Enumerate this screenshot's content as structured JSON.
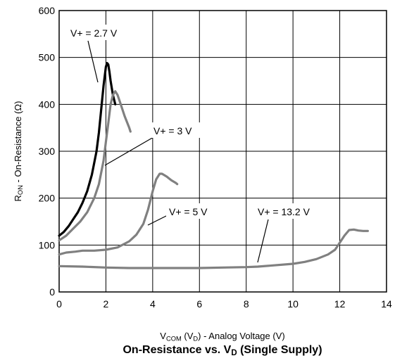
{
  "chart_data": {
    "type": "line",
    "title_main": "On-Resistance vs. V",
    "title_sub": "D",
    "title_tail": " (Single Supply)",
    "ylabel_a": "R",
    "ylabel_sub": "ON",
    "ylabel_b": " - On-Resistance (Ω)",
    "xlabel_a": "V",
    "xlabel_sub1": "COM",
    "xlabel_b": " (V",
    "xlabel_sub2": "D",
    "xlabel_c": ") - Analog Voltage (V)",
    "xlim": [
      0,
      14
    ],
    "ylim": [
      0,
      600
    ],
    "xticks": [
      "0",
      "2",
      "4",
      "6",
      "8",
      "10",
      "12",
      "14"
    ],
    "yticks": [
      "0",
      "100",
      "200",
      "300",
      "400",
      "500",
      "600"
    ],
    "grid": true,
    "series": [
      {
        "name": "V+ = 2.7 V",
        "color": "#000000",
        "x": [
          0,
          0.2,
          0.4,
          0.6,
          0.8,
          1.0,
          1.2,
          1.4,
          1.6,
          1.7,
          1.8,
          1.9,
          2.0,
          2.05,
          2.1,
          2.15,
          2.2,
          2.3,
          2.4
        ],
        "y": [
          120,
          128,
          140,
          155,
          170,
          190,
          215,
          250,
          300,
          340,
          390,
          440,
          480,
          488,
          485,
          470,
          450,
          420,
          400
        ]
      },
      {
        "name": "V+ = 3 V",
        "color": "#808080",
        "x": [
          0,
          0.3,
          0.6,
          0.9,
          1.2,
          1.5,
          1.7,
          1.9,
          2.0,
          2.1,
          2.2,
          2.3,
          2.4,
          2.5,
          2.6,
          2.8,
          3.0,
          3.05
        ],
        "y": [
          110,
          120,
          135,
          150,
          170,
          200,
          230,
          280,
          320,
          360,
          400,
          420,
          428,
          420,
          405,
          375,
          350,
          342
        ]
      },
      {
        "name": "V+ = 5 V",
        "color": "#808080",
        "x": [
          0,
          0.3,
          0.7,
          1.0,
          1.5,
          2.0,
          2.5,
          3.0,
          3.3,
          3.6,
          3.8,
          4.0,
          4.15,
          4.3,
          4.4,
          4.6,
          4.8,
          5.0,
          5.05
        ],
        "y": [
          80,
          84,
          86,
          88,
          88,
          90,
          95,
          108,
          122,
          145,
          175,
          215,
          240,
          252,
          252,
          246,
          238,
          232,
          230
        ]
      },
      {
        "name": "V+ = 13.2 V",
        "color": "#808080",
        "x": [
          0,
          1,
          2,
          3,
          4,
          5,
          6,
          7,
          8,
          8.5,
          9,
          10,
          10.5,
          11,
          11.5,
          11.8,
          12.0,
          12.2,
          12.4,
          12.6,
          12.8,
          13.0,
          13.2
        ],
        "y": [
          55,
          54,
          52,
          51,
          51,
          51,
          51,
          52,
          53,
          54,
          56,
          60,
          64,
          70,
          80,
          90,
          105,
          120,
          132,
          133,
          131,
          130,
          130
        ]
      }
    ],
    "annotations": [
      {
        "text": "V+ = 2.7 V"
      },
      {
        "text": "V+ = 3 V"
      },
      {
        "text": "V+ = 5 V"
      },
      {
        "text": "V+ = 13.2 V"
      }
    ]
  }
}
